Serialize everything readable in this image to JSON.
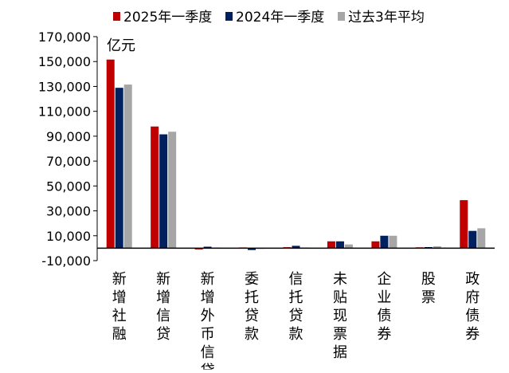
{
  "chart_data": {
    "type": "bar",
    "unit_label": "亿元",
    "categories": [
      "新增社融",
      "新增信贷",
      "新增外币信贷",
      "委托贷款",
      "信托贷款",
      "未贴现票据",
      "企业债券",
      "股票",
      "政府债券"
    ],
    "series": [
      {
        "name": "2025年一季度",
        "color": "#C00000",
        "values": [
          151600,
          97800,
          -1000,
          600,
          800,
          5500,
          5500,
          700,
          38600
        ]
      },
      {
        "name": "2024年一季度",
        "color": "#002060",
        "values": [
          128900,
          91500,
          1200,
          -1500,
          1900,
          5500,
          10000,
          900,
          13900
        ]
      },
      {
        "name": "过去3年平均",
        "color": "#A6A6A6",
        "values": [
          131500,
          93600,
          500,
          -300,
          500,
          3000,
          10000,
          1500,
          16000
        ]
      }
    ],
    "yaxis": {
      "min": -10000,
      "max": 170000,
      "ticks": [
        -10000,
        10000,
        30000,
        50000,
        70000,
        90000,
        110000,
        130000,
        150000,
        170000
      ],
      "tick_labels": [
        "-10,000",
        "10,000",
        "30,000",
        "50,000",
        "70,000",
        "90,000",
        "110,000",
        "130,000",
        "150,000",
        "170,000"
      ]
    },
    "legend_position": "top",
    "grid": false
  }
}
